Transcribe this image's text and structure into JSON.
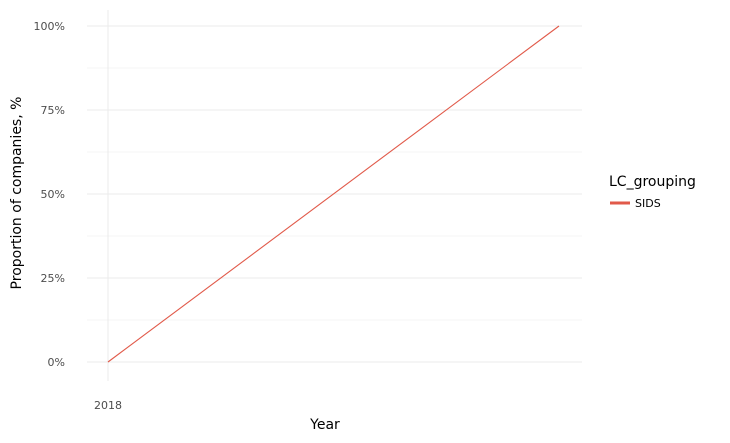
{
  "chart_data": {
    "type": "line",
    "xlabel": "Year",
    "ylabel": "Proportion of companies, %",
    "x_tick_labels": [
      "2018"
    ],
    "y_ticks": [
      0,
      25,
      50,
      75,
      100
    ],
    "y_tick_labels": [
      "0%",
      "25%",
      "50%",
      "75%",
      "100%"
    ],
    "ylim": [
      0,
      100
    ],
    "grid": true,
    "legend": {
      "title": "LC_grouping",
      "position": "right"
    },
    "series": [
      {
        "name": "SIDS",
        "color": "#e15a4a",
        "points": [
          {
            "x": "2018",
            "y": 0
          },
          {
            "x": "",
            "y": 100
          }
        ]
      }
    ]
  }
}
